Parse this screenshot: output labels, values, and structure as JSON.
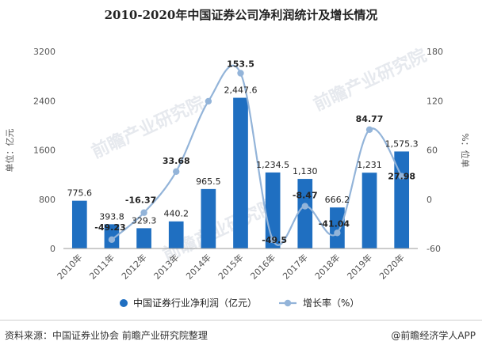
{
  "title": "2010-2020年中国证券公司净利润统计及增长情况",
  "footer": {
    "source": "资料来源：中国证券业协会 前瞻产业研究院整理",
    "brand": "@前瞻经济学人APP"
  },
  "watermark": "前瞻产业研究院",
  "colors": {
    "bar": "#1f6fc1",
    "line": "#93b4d9",
    "marker": "#93b4d9"
  },
  "chart_data": {
    "type": "bar",
    "title": "2010-2020年中国证券公司净利润统计及增长情况",
    "categories": [
      "2010年",
      "2011年",
      "2012年",
      "2013年",
      "2014年",
      "2015年",
      "2016年",
      "2017年",
      "2018年",
      "2019年",
      "2020年"
    ],
    "series": [
      {
        "name": "中国证券行业净利润（亿元）",
        "type": "bar",
        "axis": "left",
        "values": [
          775.6,
          393.8,
          329.3,
          440.2,
          965.5,
          2447.6,
          1234.5,
          1130,
          666.2,
          1231,
          1575.3
        ],
        "labels": [
          "775.6",
          "393.8",
          "329.3",
          "440.2",
          "965.5",
          "2,447.6",
          "1,234.5",
          "1,130",
          "666.2",
          "1,231",
          "1,575.3"
        ]
      },
      {
        "name": "增长率（%）",
        "type": "line",
        "axis": "right",
        "values": [
          null,
          -49.23,
          -16.37,
          33.68,
          119.34,
          153.5,
          -49.5,
          -8.47,
          -41.04,
          84.77,
          27.98
        ],
        "labels": [
          "",
          "-49.23",
          "-16.37",
          "33.68",
          "",
          "153.5",
          "-49.5",
          "-8.47",
          "-41.04",
          "84.77",
          "27.98"
        ]
      }
    ],
    "y_left": {
      "label": "单位：亿元",
      "ylim": [
        0,
        3200
      ],
      "ticks": [
        "0",
        "800",
        "1600",
        "2400",
        "3200"
      ]
    },
    "y_right": {
      "label": "%：位单",
      "ylim": [
        -60,
        180
      ],
      "ticks": [
        "-60",
        "0",
        "60",
        "120",
        "180"
      ]
    },
    "grid": false,
    "legend_position": "bottom"
  }
}
